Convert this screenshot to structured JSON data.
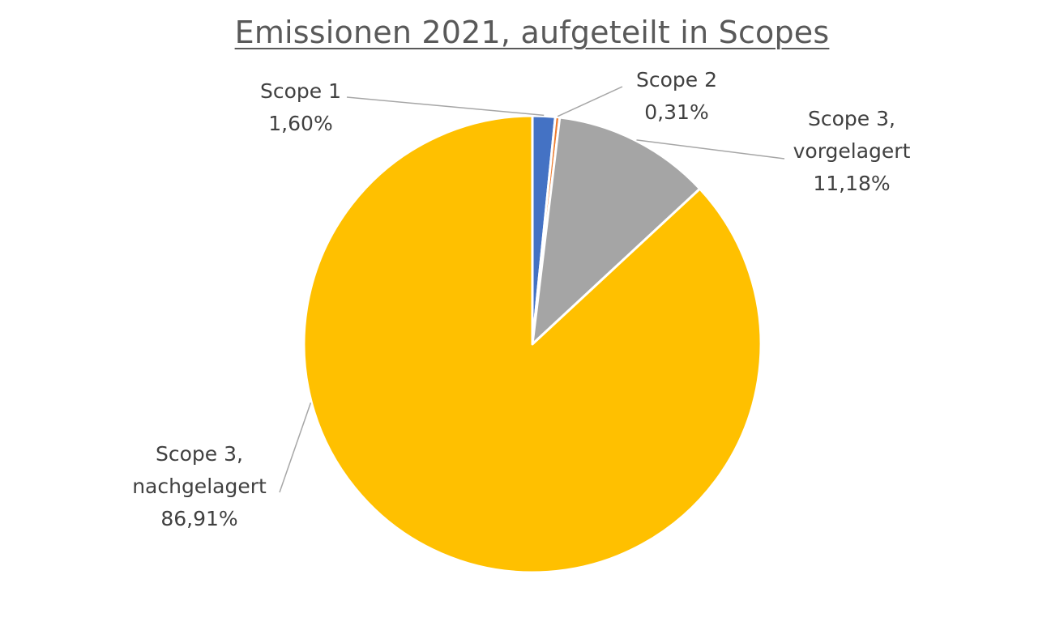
{
  "chart_data": {
    "type": "pie",
    "title": "Emissionen 2021, aufgeteilt in Scopes",
    "series": [
      {
        "values": [
          1.6,
          0.31,
          11.18,
          86.91
        ]
      }
    ],
    "categories": [
      "Scope 1",
      "Scope 2",
      "Scope 3, vorgelagert",
      "Scope 3, nachgelagert"
    ],
    "slices": [
      {
        "label": [
          "Scope 1"
        ],
        "value_text": "1,60%",
        "value": 1.6,
        "color": "#4472C4"
      },
      {
        "label": [
          "Scope 2"
        ],
        "value_text": "0,31%",
        "value": 0.31,
        "color": "#ED7D31"
      },
      {
        "label": [
          "Scope 3,",
          "vorgelagert"
        ],
        "value_text": "11,18%",
        "value": 11.18,
        "color": "#A5A5A5"
      },
      {
        "label": [
          "Scope 3,",
          "nachgelagert"
        ],
        "value_text": "86,91%",
        "value": 86.91,
        "color": "#FFC000"
      }
    ],
    "start_angle": "12 o'clock",
    "direction": "clockwise",
    "legend": "none",
    "data_labels": "outside with leader lines"
  }
}
